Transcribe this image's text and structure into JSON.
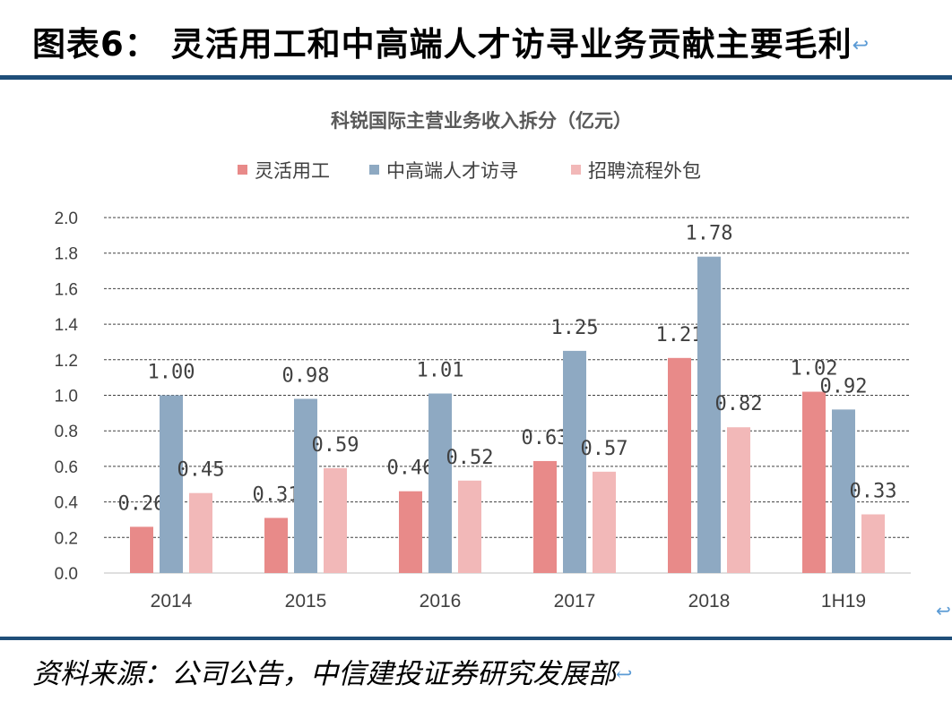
{
  "figure": {
    "title": "图表6： 灵活用工和中高端人才访寻业务贡献主要毛利",
    "return_mark": "↩",
    "source": "资料来源：公司公告，中信建投证券研究发展部"
  },
  "chart_data": {
    "type": "bar",
    "title": "科锐国际主营业务收入拆分（亿元）",
    "xlabel": "",
    "ylabel": "",
    "categories": [
      "2014",
      "2015",
      "2016",
      "2017",
      "2018",
      "1H19"
    ],
    "series": [
      {
        "name": "灵活用工",
        "color": "#e88a89",
        "values": [
          0.26,
          0.31,
          0.46,
          0.63,
          1.21,
          1.02
        ]
      },
      {
        "name": "中高端人才访寻",
        "color": "#8ea9c2",
        "values": [
          1.0,
          0.98,
          1.01,
          1.25,
          1.78,
          0.92
        ]
      },
      {
        "name": "招聘流程外包",
        "color": "#f2b8b8",
        "values": [
          0.45,
          0.59,
          0.52,
          0.57,
          0.82,
          0.33
        ]
      }
    ],
    "ylim": [
      0,
      2.0
    ],
    "yticks": [
      "0.0",
      "0.2",
      "0.4",
      "0.6",
      "0.8",
      "1.0",
      "1.2",
      "1.4",
      "1.6",
      "1.8",
      "2.0"
    ],
    "value_labels": [
      [
        "0.26",
        "0.31",
        "0.46",
        "0.63",
        "1.21",
        "1.02"
      ],
      [
        "1.00",
        "0.98",
        "1.01",
        "1.25",
        "1.78",
        "0.92"
      ],
      [
        "0.45",
        "0.59",
        "0.52",
        "0.57",
        "0.82",
        "0.33"
      ]
    ],
    "grid": true,
    "grid_style": "dashed",
    "legend_position": "top-center"
  }
}
